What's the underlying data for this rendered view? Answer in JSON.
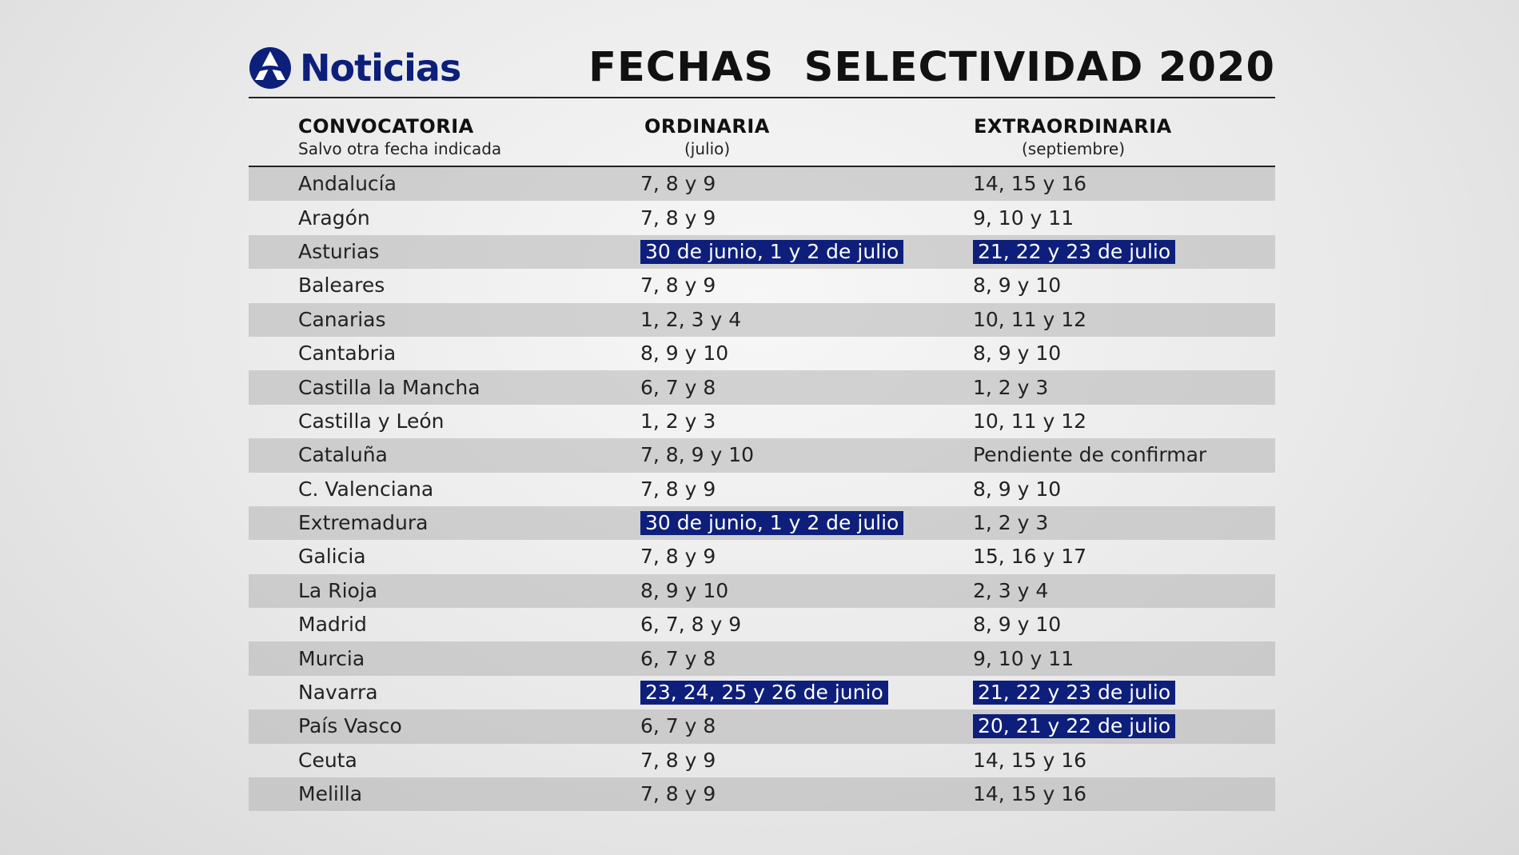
{
  "brand": {
    "name": "Noticias",
    "logo_icon": "antena3-logo-icon",
    "color": "#0c1f7a"
  },
  "title": "FECHAS  SELECTIVIDAD 2020",
  "columns": {
    "convocatoria": {
      "title": "CONVOCATORIA",
      "subtitle": "Salvo otra fecha indicada"
    },
    "ordinaria": {
      "title": "ORDINARIA",
      "subtitle": "(julio)"
    },
    "extraordinaria": {
      "title": "EXTRAORDINARIA",
      "subtitle": "(septiembre)"
    }
  },
  "highlight_color": "#0e1f7b",
  "rows": [
    {
      "region": "Andalucía",
      "ordinaria": "7, 8 y 9",
      "extraordinaria": "14, 15 y 16",
      "ord_hl": false,
      "ext_hl": false
    },
    {
      "region": "Aragón",
      "ordinaria": "7, 8 y 9",
      "extraordinaria": "9, 10 y 11",
      "ord_hl": false,
      "ext_hl": false
    },
    {
      "region": "Asturias",
      "ordinaria": "30 de junio, 1 y 2 de julio",
      "extraordinaria": "21, 22 y 23 de julio",
      "ord_hl": true,
      "ext_hl": true
    },
    {
      "region": "Baleares",
      "ordinaria": "7, 8 y 9",
      "extraordinaria": "8, 9 y 10",
      "ord_hl": false,
      "ext_hl": false
    },
    {
      "region": "Canarias",
      "ordinaria": "1, 2, 3 y 4",
      "extraordinaria": "10, 11 y 12",
      "ord_hl": false,
      "ext_hl": false
    },
    {
      "region": "Cantabria",
      "ordinaria": "8, 9 y 10",
      "extraordinaria": "8, 9 y 10",
      "ord_hl": false,
      "ext_hl": false
    },
    {
      "region": "Castilla la Mancha",
      "ordinaria": "6, 7 y 8",
      "extraordinaria": "1, 2 y 3",
      "ord_hl": false,
      "ext_hl": false
    },
    {
      "region": "Castilla y León",
      "ordinaria": "1, 2 y 3",
      "extraordinaria": "10, 11 y 12",
      "ord_hl": false,
      "ext_hl": false
    },
    {
      "region": "Cataluña",
      "ordinaria": "7, 8, 9 y 10",
      "extraordinaria": "Pendiente de confirmar",
      "ord_hl": false,
      "ext_hl": false
    },
    {
      "region": "C. Valenciana",
      "ordinaria": "7, 8 y 9",
      "extraordinaria": "8, 9 y 10",
      "ord_hl": false,
      "ext_hl": false
    },
    {
      "region": "Extremadura",
      "ordinaria": "30 de junio, 1 y 2 de julio",
      "extraordinaria": "1, 2 y 3",
      "ord_hl": true,
      "ext_hl": false
    },
    {
      "region": "Galicia",
      "ordinaria": "7, 8 y 9",
      "extraordinaria": "15, 16 y 17",
      "ord_hl": false,
      "ext_hl": false
    },
    {
      "region": "La Rioja",
      "ordinaria": "8, 9 y 10",
      "extraordinaria": "2, 3 y 4",
      "ord_hl": false,
      "ext_hl": false
    },
    {
      "region": "Madrid",
      "ordinaria": "6, 7, 8 y 9",
      "extraordinaria": "8, 9 y 10",
      "ord_hl": false,
      "ext_hl": false
    },
    {
      "region": "Murcia",
      "ordinaria": "6, 7 y 8",
      "extraordinaria": "9, 10 y 11",
      "ord_hl": false,
      "ext_hl": false
    },
    {
      "region": "Navarra",
      "ordinaria": "23, 24, 25 y 26 de junio",
      "extraordinaria": "21, 22 y 23 de julio",
      "ord_hl": true,
      "ext_hl": true
    },
    {
      "region": "País Vasco",
      "ordinaria": "6, 7 y 8",
      "extraordinaria": "20, 21 y 22 de julio",
      "ord_hl": false,
      "ext_hl": true
    },
    {
      "region": "Ceuta",
      "ordinaria": "7, 8 y 9",
      "extraordinaria": "14, 15 y 16",
      "ord_hl": false,
      "ext_hl": false
    },
    {
      "region": "Melilla",
      "ordinaria": "7, 8 y 9",
      "extraordinaria": "14, 15 y 16",
      "ord_hl": false,
      "ext_hl": false
    }
  ]
}
